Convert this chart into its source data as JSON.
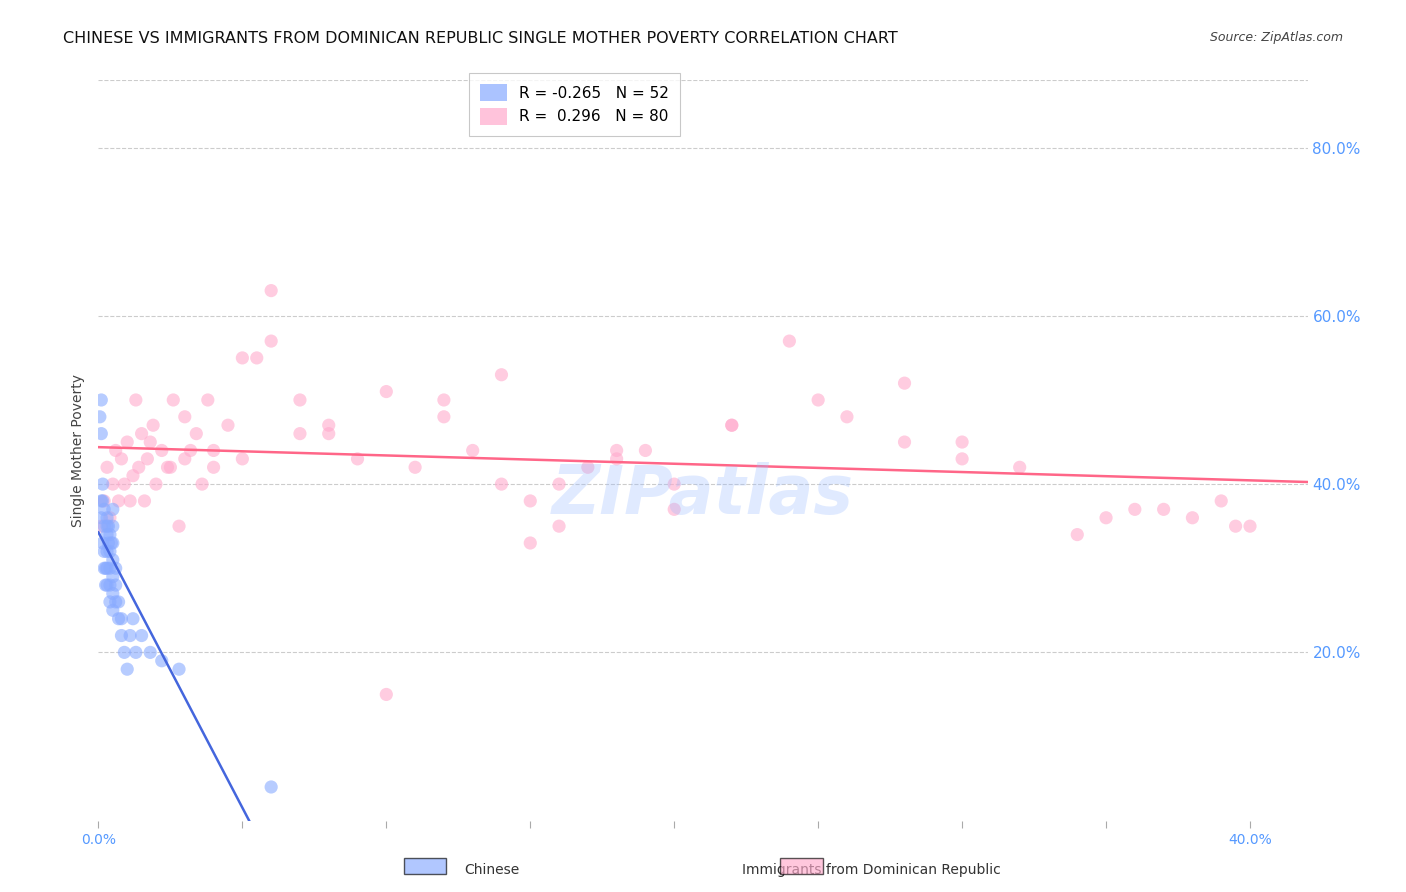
{
  "title": "CHINESE VS IMMIGRANTS FROM DOMINICAN REPUBLIC SINGLE MOTHER POVERTY CORRELATION CHART",
  "source": "Source: ZipAtlas.com",
  "ylabel": "Single Mother Poverty",
  "xlim": [
    0.0,
    0.42
  ],
  "ylim": [
    0.0,
    0.88
  ],
  "color_chinese": "#88aaff",
  "color_dominican": "#ffaacc",
  "color_trend_chinese": "#4466dd",
  "color_trend_dominican": "#ff6688",
  "color_trend_ext": "#cccccc",
  "watermark": "ZIPatlas",
  "background_color": "#ffffff",
  "grid_color": "#cccccc",
  "axis_color": "#5599ff",
  "title_color": "#111111",
  "title_fontsize": 11.5,
  "source_fontsize": 9,
  "ylabel_fontsize": 10,
  "tick_fontsize": 10,
  "legend_fontsize": 11,
  "chinese_x": [
    0.0005,
    0.001,
    0.001,
    0.001,
    0.001,
    0.0015,
    0.0015,
    0.0015,
    0.002,
    0.002,
    0.002,
    0.002,
    0.0025,
    0.0025,
    0.003,
    0.003,
    0.003,
    0.003,
    0.003,
    0.003,
    0.0035,
    0.0035,
    0.004,
    0.004,
    0.004,
    0.004,
    0.004,
    0.0045,
    0.005,
    0.005,
    0.005,
    0.005,
    0.005,
    0.005,
    0.005,
    0.006,
    0.006,
    0.006,
    0.007,
    0.007,
    0.008,
    0.008,
    0.009,
    0.01,
    0.011,
    0.012,
    0.013,
    0.015,
    0.018,
    0.022,
    0.028,
    0.06
  ],
  "chinese_y": [
    0.48,
    0.46,
    0.5,
    0.36,
    0.38,
    0.38,
    0.4,
    0.33,
    0.35,
    0.37,
    0.3,
    0.32,
    0.28,
    0.3,
    0.35,
    0.36,
    0.32,
    0.34,
    0.28,
    0.3,
    0.33,
    0.35,
    0.3,
    0.32,
    0.34,
    0.26,
    0.28,
    0.33,
    0.25,
    0.27,
    0.29,
    0.31,
    0.33,
    0.35,
    0.37,
    0.26,
    0.28,
    0.3,
    0.24,
    0.26,
    0.22,
    0.24,
    0.2,
    0.18,
    0.22,
    0.24,
    0.2,
    0.22,
    0.2,
    0.19,
    0.18,
    0.04
  ],
  "dominican_x": [
    0.001,
    0.002,
    0.003,
    0.004,
    0.005,
    0.006,
    0.007,
    0.008,
    0.009,
    0.01,
    0.011,
    0.012,
    0.013,
    0.014,
    0.015,
    0.016,
    0.017,
    0.018,
    0.019,
    0.02,
    0.022,
    0.024,
    0.026,
    0.028,
    0.03,
    0.032,
    0.034,
    0.036,
    0.038,
    0.04,
    0.045,
    0.05,
    0.055,
    0.06,
    0.07,
    0.08,
    0.09,
    0.1,
    0.11,
    0.12,
    0.13,
    0.14,
    0.15,
    0.16,
    0.17,
    0.18,
    0.19,
    0.2,
    0.22,
    0.24,
    0.26,
    0.28,
    0.3,
    0.32,
    0.34,
    0.36,
    0.38,
    0.39,
    0.395,
    0.4,
    0.1,
    0.2,
    0.08,
    0.15,
    0.25,
    0.3,
    0.05,
    0.07,
    0.03,
    0.04,
    0.06,
    0.025,
    0.18,
    0.22,
    0.28,
    0.35,
    0.37,
    0.16,
    0.12,
    0.14
  ],
  "dominican_y": [
    0.35,
    0.38,
    0.42,
    0.36,
    0.4,
    0.44,
    0.38,
    0.43,
    0.4,
    0.45,
    0.38,
    0.41,
    0.5,
    0.42,
    0.46,
    0.38,
    0.43,
    0.45,
    0.47,
    0.4,
    0.44,
    0.42,
    0.5,
    0.35,
    0.43,
    0.44,
    0.46,
    0.4,
    0.5,
    0.42,
    0.47,
    0.43,
    0.55,
    0.63,
    0.5,
    0.46,
    0.43,
    0.15,
    0.42,
    0.48,
    0.44,
    0.4,
    0.33,
    0.35,
    0.42,
    0.43,
    0.44,
    0.37,
    0.47,
    0.57,
    0.48,
    0.52,
    0.45,
    0.42,
    0.34,
    0.37,
    0.36,
    0.38,
    0.35,
    0.35,
    0.51,
    0.4,
    0.47,
    0.38,
    0.5,
    0.43,
    0.55,
    0.46,
    0.48,
    0.44,
    0.57,
    0.42,
    0.44,
    0.47,
    0.45,
    0.36,
    0.37,
    0.4,
    0.5,
    0.53
  ],
  "r_chinese": -0.265,
  "n_chinese": 52,
  "r_dominican": 0.296,
  "n_dominican": 80
}
